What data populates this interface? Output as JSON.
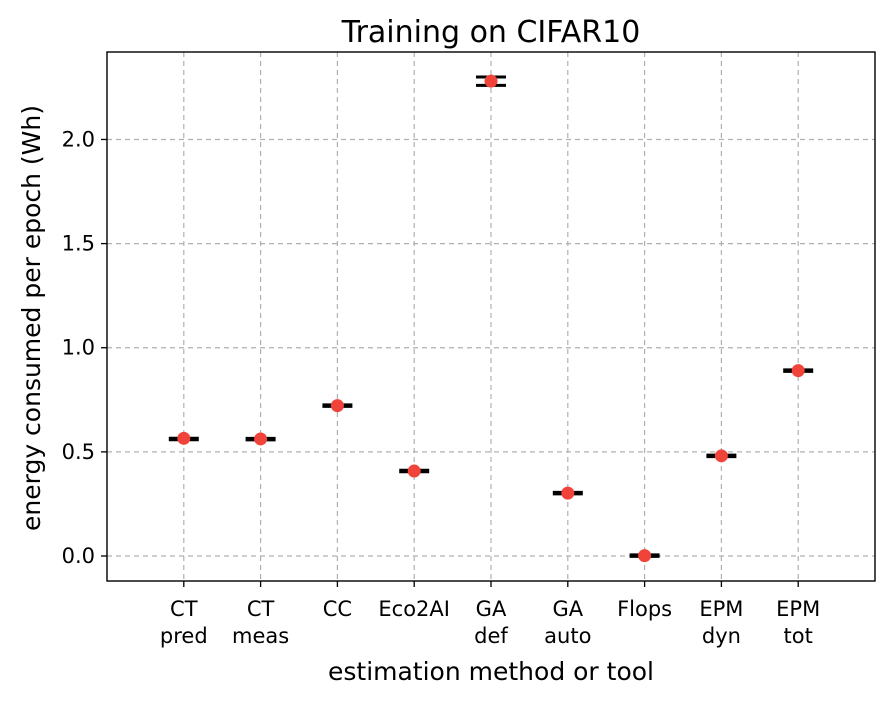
{
  "chart_data": {
    "type": "box",
    "title": "Training on CIFAR10",
    "xlabel": "estimation method or tool",
    "ylabel": "energy consumed per epoch (Wh)",
    "ylim": [
      -0.12,
      2.42
    ],
    "yticks": [
      "0.0",
      "0.5",
      "1.0",
      "1.5",
      "2.0"
    ],
    "grid": true,
    "categories": [
      [
        "CT",
        "pred"
      ],
      [
        "CT",
        "meas"
      ],
      [
        "CC"
      ],
      [
        "Eco2AI"
      ],
      [
        "GA",
        "def"
      ],
      [
        "GA",
        "auto"
      ],
      [
        "Flops"
      ],
      [
        "EPM",
        "dyn"
      ],
      [
        "EPM",
        "tot"
      ]
    ],
    "means": [
      0.565,
      0.562,
      0.722,
      0.408,
      2.28,
      0.302,
      0.002,
      0.481,
      0.89
    ],
    "box_low": [
      0.553,
      0.556,
      0.716,
      0.403,
      2.26,
      0.298,
      0.0,
      0.476,
      0.884
    ],
    "box_high": [
      0.571,
      0.567,
      0.728,
      0.413,
      2.3,
      0.306,
      0.004,
      0.486,
      0.896
    ],
    "colors": {
      "mean_marker": "#f0433a",
      "box": "#000000",
      "grid": "#b0b0b0"
    }
  }
}
